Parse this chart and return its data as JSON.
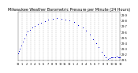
{
  "title": "Milwaukee Weather Barometric Pressure per Minute (24 Hours)",
  "title_fontsize": 3.5,
  "dot_color": "#0000cc",
  "dot_size": 0.5,
  "bg_color": "#ffffff",
  "grid_color": "#999999",
  "ylim": [
    29.08,
    29.96
  ],
  "xlim": [
    0,
    1440
  ],
  "tick_fontsize": 2.5,
  "x_ticks": [
    0,
    60,
    120,
    180,
    240,
    300,
    360,
    420,
    480,
    540,
    600,
    660,
    720,
    780,
    840,
    900,
    960,
    1020,
    1080,
    1140,
    1200,
    1260,
    1320,
    1380,
    1440
  ],
  "x_tick_labels": [
    "12",
    "1",
    "2",
    "3",
    "4",
    "5",
    "6",
    "7",
    "8",
    "9",
    "10",
    "11",
    "12",
    "1",
    "2",
    "3",
    "4",
    "5",
    "6",
    "7",
    "8",
    "9",
    "10",
    "11",
    "12"
  ],
  "y_ticks": [
    29.1,
    29.2,
    29.3,
    29.4,
    29.5,
    29.6,
    29.7,
    29.8,
    29.9
  ],
  "data_x": [
    0,
    15,
    30,
    50,
    70,
    90,
    115,
    140,
    165,
    200,
    240,
    280,
    330,
    380,
    430,
    490,
    550,
    610,
    670,
    730,
    790,
    850,
    910,
    960,
    1010,
    1060,
    1100,
    1140,
    1175,
    1210,
    1240,
    1265,
    1290,
    1310,
    1330,
    1350,
    1370,
    1390,
    1410,
    1425,
    1440
  ],
  "data_y": [
    29.21,
    29.25,
    29.3,
    29.36,
    29.42,
    29.48,
    29.55,
    29.6,
    29.63,
    29.67,
    29.7,
    29.73,
    29.76,
    29.79,
    29.82,
    29.83,
    29.84,
    29.83,
    29.82,
    29.8,
    29.77,
    29.72,
    29.67,
    29.62,
    29.55,
    29.47,
    29.4,
    29.32,
    29.24,
    29.18,
    29.14,
    29.12,
    29.13,
    29.14,
    29.14,
    29.14,
    29.14,
    29.15,
    29.14,
    29.14,
    29.14
  ],
  "vgrid_positions": [
    60,
    120,
    180,
    240,
    300,
    360,
    420,
    480,
    540,
    600,
    660,
    720,
    780,
    840,
    900,
    960,
    1020,
    1080,
    1140,
    1200,
    1260,
    1320,
    1380
  ]
}
